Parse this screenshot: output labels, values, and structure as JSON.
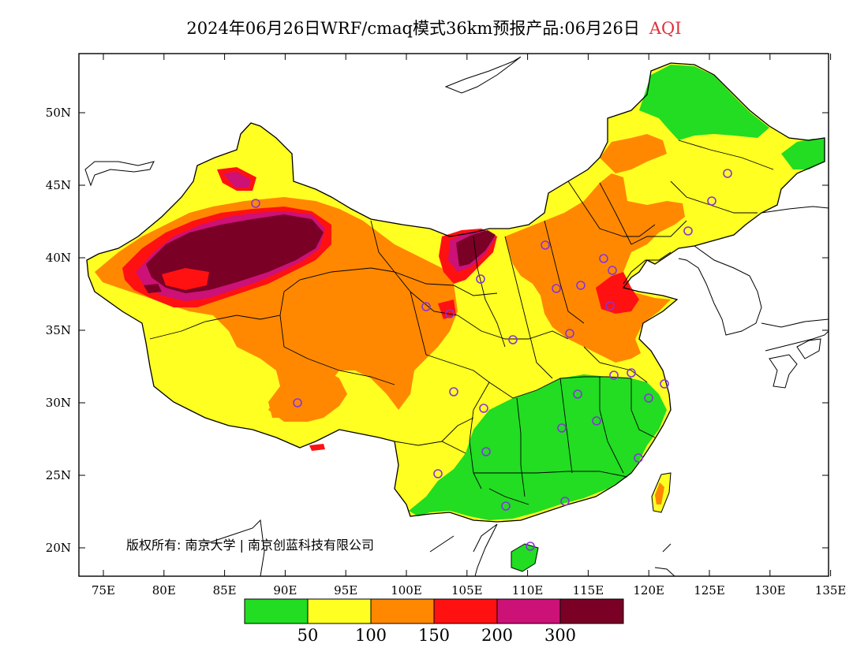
{
  "title": {
    "main": "2024年06月26日WRF/cmaq模式36km预报产品:06月26日",
    "variable": "AQI"
  },
  "axes": {
    "x_ticks": [
      "75E",
      "80E",
      "85E",
      "90E",
      "95E",
      "100E",
      "105E",
      "110E",
      "115E",
      "120E",
      "125E",
      "130E",
      "135E"
    ],
    "y_ticks": [
      "50N",
      "45N",
      "40N",
      "35N",
      "30N",
      "25N",
      "20N"
    ]
  },
  "copyright": "版权所有: 南京大学 | 南京创蓝科技有限公司",
  "colors": {
    "c0_50": "#22dd22",
    "c50_100": "#ffff22",
    "c100_150": "#ff8800",
    "c150_200": "#ff1111",
    "c200_300": "#cc1177",
    "c300_up": "#7a0026",
    "station_marker": "#8833dd"
  },
  "legend": {
    "colors": [
      "#22dd22",
      "#ffff22",
      "#ff8800",
      "#ff1111",
      "#cc1177",
      "#7a0026"
    ],
    "labels": [
      "50",
      "100",
      "150",
      "200",
      "300"
    ]
  }
}
